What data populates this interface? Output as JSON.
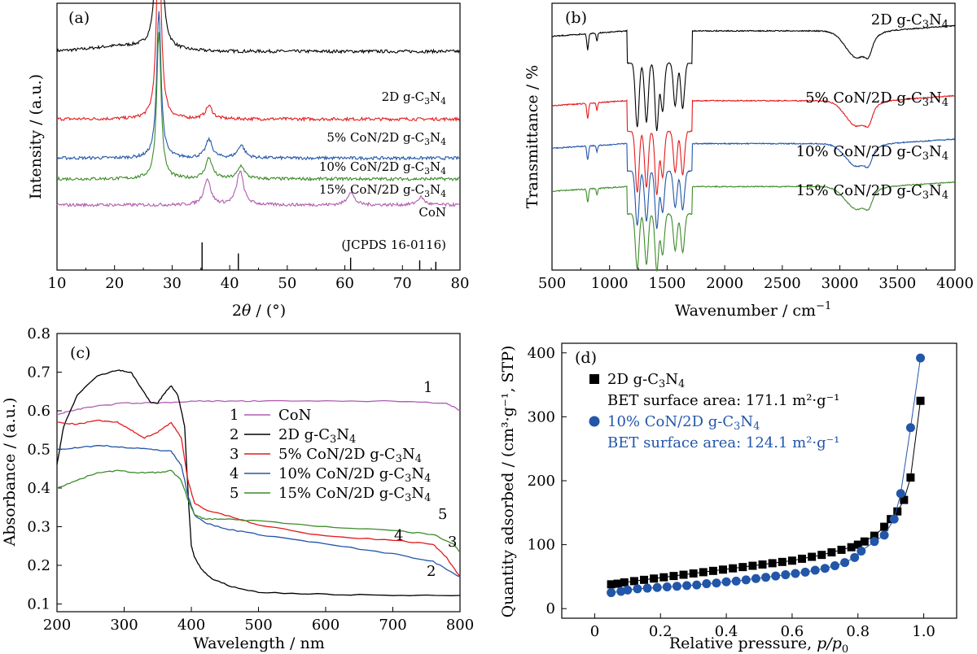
{
  "colors": {
    "black": "#000000",
    "red": "#e41a1c",
    "blue": "#2256a8",
    "green": "#3d8b2a",
    "purple": "#b05cb0"
  },
  "chart_data": [
    {
      "panel_label": "(a)",
      "type": "line",
      "xlabel_main": "2",
      "xlabel_theta": "θ",
      "xlabel_rest": " / (°)",
      "ylabel": "Intensity / (a.u.)",
      "xlim": [
        10,
        80
      ],
      "xticks": [
        "10",
        "20",
        "30",
        "40",
        "50",
        "60",
        "70",
        "80"
      ],
      "series": [
        {
          "name_parts": [
            "2D g-C",
            "3",
            "N",
            "4"
          ],
          "color": "#000000",
          "peaks": [
            [
              27.7,
              1.0
            ]
          ],
          "baseline": 0.84
        },
        {
          "name_parts": [
            "5% CoN/2D g-C",
            "3",
            "N",
            "4"
          ],
          "color": "#e41a1c",
          "peaks": [
            [
              27.7,
              0.78
            ],
            [
              36.4,
              0.05
            ]
          ],
          "baseline": 0.58
        },
        {
          "name_parts": [
            "10% CoN/2D g-C",
            "3",
            "N",
            "4"
          ],
          "color": "#2256a8",
          "peaks": [
            [
              27.7,
              0.57
            ],
            [
              36.4,
              0.07
            ],
            [
              42.0,
              0.05
            ]
          ],
          "baseline": 0.43
        },
        {
          "name_parts": [
            "15% CoN/2D g-C",
            "3",
            "N",
            "4"
          ],
          "color": "#3d8b2a",
          "peaks": [
            [
              27.7,
              0.57
            ],
            [
              36.4,
              0.08
            ],
            [
              42.0,
              0.05
            ]
          ],
          "baseline": 0.35
        },
        {
          "name_parts": [
            "CoN"
          ],
          "color": "#b05cb0",
          "peaks": [
            [
              36.1,
              0.1
            ],
            [
              41.8,
              0.13
            ],
            [
              61.0,
              0.05
            ],
            [
              73.2,
              0.03
            ]
          ],
          "baseline": 0.25
        }
      ],
      "reference": {
        "name": "(JCPDS 16-0116)",
        "lines": [
          35.2,
          41.5,
          61.0,
          73.0,
          75.8
        ],
        "heights": [
          1.0,
          0.6,
          0.45,
          0.35,
          0.3
        ]
      }
    },
    {
      "panel_label": "(b)",
      "type": "line",
      "xlabel": "Wavenumber / cm",
      "xlabel_sup": "−1",
      "ylabel": "Transmittance / %",
      "xlim": [
        500,
        4000
      ],
      "xticks": [
        "500",
        "1000",
        "1500",
        "2000",
        "2500",
        "3000",
        "3500",
        "4000"
      ],
      "series": [
        {
          "name_parts": [
            "2D g-C",
            "3",
            "N",
            "4"
          ],
          "color": "#000000",
          "offset": 0.0
        },
        {
          "name_parts": [
            "5% CoN/2D g-C",
            "3",
            "N",
            "4"
          ],
          "color": "#e41a1c",
          "offset": 0.26
        },
        {
          "name_parts": [
            "10% CoN/2D g-C",
            "3",
            "N",
            "4"
          ],
          "color": "#2256a8",
          "offset": 0.42
        },
        {
          "name_parts": [
            "15% CoN/2D g-C",
            "3",
            "N",
            "4"
          ],
          "color": "#3d8b2a",
          "offset": 0.58
        }
      ]
    },
    {
      "panel_label": "(c)",
      "type": "line",
      "xlabel": "Wavelength / nm",
      "ylabel": "Absorbance / (a.u.)",
      "xlim": [
        200,
        800
      ],
      "ylim": [
        0.08,
        0.8
      ],
      "xticks": [
        "200",
        "300",
        "400",
        "500",
        "600",
        "700",
        "800"
      ],
      "yticks": [
        "0.1",
        "0.2",
        "0.3",
        "0.4",
        "0.5",
        "0.6",
        "0.7",
        "0.8"
      ],
      "series": [
        {
          "num": "1",
          "name_parts": [
            "CoN"
          ],
          "color": "#b05cb0",
          "x": [
            200,
            220,
            250,
            300,
            350,
            400,
            450,
            500,
            600,
            700,
            780,
            800
          ],
          "y": [
            0.59,
            0.6,
            0.61,
            0.62,
            0.62,
            0.625,
            0.625,
            0.625,
            0.625,
            0.625,
            0.62,
            0.6
          ]
        },
        {
          "num": "2",
          "name_parts": [
            "2D g-C",
            "3",
            "N",
            "4"
          ],
          "color": "#000000",
          "x": [
            200,
            210,
            230,
            260,
            290,
            310,
            325,
            340,
            350,
            360,
            370,
            380,
            390,
            396,
            400,
            405,
            415,
            430,
            460,
            500,
            600,
            700,
            800
          ],
          "y": [
            0.46,
            0.56,
            0.64,
            0.69,
            0.705,
            0.7,
            0.66,
            0.62,
            0.62,
            0.645,
            0.665,
            0.64,
            0.56,
            0.36,
            0.25,
            0.22,
            0.19,
            0.165,
            0.145,
            0.13,
            0.125,
            0.122,
            0.122
          ]
        },
        {
          "num": "3",
          "name_parts": [
            "5% CoN/2D g-C",
            "3",
            "N",
            "4"
          ],
          "color": "#e41a1c",
          "x": [
            200,
            230,
            260,
            290,
            310,
            330,
            350,
            370,
            385,
            395,
            405,
            420,
            450,
            500,
            600,
            700,
            760,
            780,
            800
          ],
          "y": [
            0.57,
            0.565,
            0.575,
            0.57,
            0.55,
            0.53,
            0.545,
            0.57,
            0.53,
            0.42,
            0.36,
            0.345,
            0.33,
            0.305,
            0.275,
            0.265,
            0.255,
            0.22,
            0.17
          ]
        },
        {
          "num": "4",
          "name_parts": [
            "10% CoN/2D g-C",
            "3",
            "N",
            "4"
          ],
          "color": "#2256a8",
          "x": [
            200,
            230,
            270,
            300,
            340,
            370,
            385,
            395,
            405,
            420,
            450,
            500,
            600,
            700,
            760,
            800
          ],
          "y": [
            0.5,
            0.505,
            0.51,
            0.505,
            0.5,
            0.495,
            0.46,
            0.38,
            0.33,
            0.31,
            0.295,
            0.28,
            0.255,
            0.23,
            0.21,
            0.17
          ]
        },
        {
          "num": "5",
          "name_parts": [
            "15% CoN/2D g-C",
            "3",
            "N",
            "4"
          ],
          "color": "#3d8b2a",
          "x": [
            200,
            230,
            260,
            290,
            320,
            350,
            370,
            385,
            395,
            405,
            420,
            450,
            500,
            600,
            700,
            760,
            790,
            800
          ],
          "y": [
            0.4,
            0.42,
            0.44,
            0.445,
            0.44,
            0.44,
            0.445,
            0.42,
            0.37,
            0.33,
            0.32,
            0.32,
            0.315,
            0.3,
            0.29,
            0.28,
            0.255,
            0.235
          ]
        }
      ]
    },
    {
      "panel_label": "(d)",
      "type": "scatter",
      "xlabel": "Relative pressure, ",
      "xlabel_var": "p/p",
      "xlabel_sub": "0",
      "ylabel": "Quantity adsorbed / (cm³·g⁻¹, STP)",
      "xlim": [
        -0.1,
        1.1
      ],
      "ylim": [
        -15,
        415
      ],
      "xticks": [
        "0",
        "0.2",
        "0.4",
        "0.6",
        "0.8",
        "1.0"
      ],
      "yticks": [
        "0",
        "100",
        "200",
        "300",
        "400"
      ],
      "series": [
        {
          "name_parts": [
            "2D g-C",
            "3",
            "N",
            "4"
          ],
          "note": "BET surface area: 171.1 m²·g⁻¹",
          "color": "#000000",
          "marker": "square",
          "x": [
            0.05,
            0.07,
            0.09,
            0.12,
            0.15,
            0.18,
            0.21,
            0.24,
            0.27,
            0.3,
            0.33,
            0.36,
            0.39,
            0.42,
            0.45,
            0.48,
            0.51,
            0.54,
            0.57,
            0.6,
            0.63,
            0.66,
            0.69,
            0.72,
            0.75,
            0.78,
            0.8,
            0.82,
            0.85,
            0.88,
            0.9,
            0.92,
            0.94,
            0.96,
            0.99
          ],
          "y": [
            38,
            39,
            41,
            43,
            45,
            47,
            49,
            51,
            53,
            55,
            57,
            59,
            61,
            63,
            65,
            67,
            69,
            71,
            73,
            75,
            78,
            81,
            84,
            88,
            92,
            96,
            100,
            105,
            114,
            128,
            140,
            152,
            170,
            205,
            325
          ]
        },
        {
          "name_parts": [
            "10% CoN/2D g-C",
            "3",
            "N",
            "4"
          ],
          "note": "BET surface area: 124.1 m²·g⁻¹",
          "color": "#2256a8",
          "marker": "circle",
          "x": [
            0.05,
            0.08,
            0.1,
            0.13,
            0.16,
            0.19,
            0.22,
            0.25,
            0.28,
            0.31,
            0.34,
            0.37,
            0.4,
            0.43,
            0.46,
            0.49,
            0.52,
            0.55,
            0.58,
            0.61,
            0.64,
            0.67,
            0.7,
            0.73,
            0.76,
            0.79,
            0.81,
            0.85,
            0.88,
            0.91,
            0.93,
            0.96,
            0.99
          ],
          "y": [
            25,
            27,
            29,
            31,
            32,
            33,
            34,
            35,
            36,
            37,
            39,
            40,
            42,
            43,
            45,
            47,
            49,
            51,
            53,
            55,
            57,
            60,
            63,
            67,
            72,
            80,
            90,
            105,
            115,
            140,
            180,
            283,
            392
          ]
        }
      ]
    }
  ]
}
